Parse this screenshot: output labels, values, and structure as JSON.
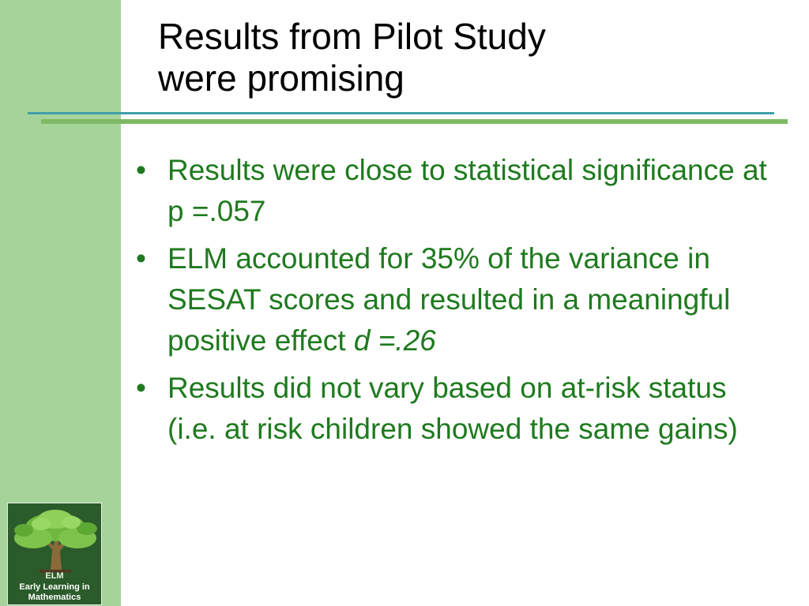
{
  "slide": {
    "title_line1": "Results from Pilot Study",
    "title_line2": "were promising",
    "bullets": [
      {
        "text": "Results were close to statistical significance at p =.057"
      },
      {
        "text_before": "ELM accounted for 35% of the variance in SESAT scores and resulted in a meaningful positive effect ",
        "text_italic": "d =.26"
      },
      {
        "text": "Results did not vary based on at-risk status (i.e. at risk children showed the same gains)"
      }
    ],
    "bullet_symbol": "•"
  },
  "logo": {
    "abbr": "ELM",
    "name_line1": "Early Learning in",
    "name_line2": "Mathematics",
    "icon": "tree-icon"
  },
  "colors": {
    "sidebar": "#a5d39a",
    "bullet_text": "#1e7a1e",
    "rule_teal": "#3f9fa8",
    "rule_green": "#7fb965",
    "logo_bg": "#2b5a2b"
  }
}
